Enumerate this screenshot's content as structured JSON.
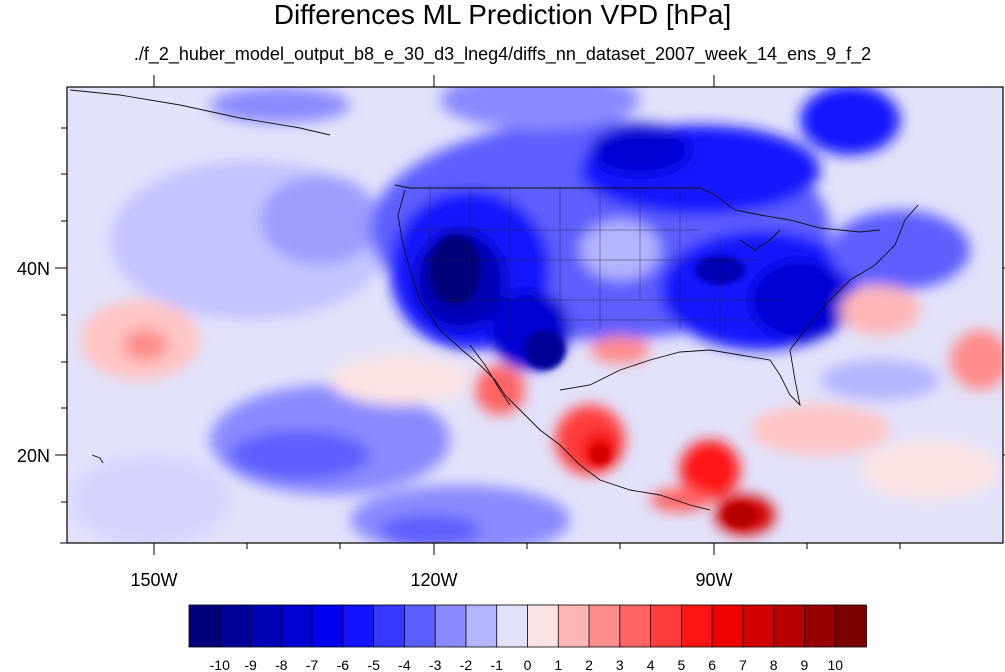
{
  "title": "Differences ML Prediction VPD [hPa]",
  "subtitle": "./f_2_huber_model_output_b8_e_30_d3_lneg4/diffs_nn_dataset_2007_week_14_ens_9_f_2",
  "map": {
    "lon_labels": [
      "150W",
      "120W",
      "90W"
    ],
    "lat_labels": [
      "40N",
      "20N"
    ]
  },
  "colorbar": {
    "labels": [
      "-10",
      "-9",
      "-8",
      "-7",
      "-6",
      "-5",
      "-4",
      "-3",
      "-2",
      "-1",
      "0",
      "1",
      "2",
      "3",
      "4",
      "5",
      "6",
      "7",
      "8",
      "9",
      "10"
    ],
    "colors": [
      "#00007a",
      "#000096",
      "#0000b4",
      "#0000d2",
      "#0000f0",
      "#1212ff",
      "#3838ff",
      "#5e5eff",
      "#8a8aff",
      "#b4b4ff",
      "#e2e2fb",
      "#fde4e4",
      "#ffb6b6",
      "#ff8c8c",
      "#ff6464",
      "#ff3c3c",
      "#ff1414",
      "#ee0000",
      "#d20000",
      "#b40000",
      "#960000",
      "#7a0000"
    ]
  }
}
